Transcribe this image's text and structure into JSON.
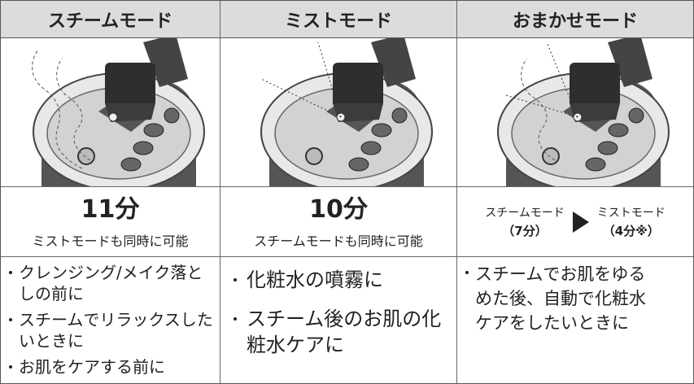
{
  "table": {
    "headers": [
      "スチームモード",
      "ミストモード",
      "おまかせモード"
    ],
    "durations": [
      {
        "time": "11分",
        "note": "ミストモードも同時に可能"
      },
      {
        "time": "10分",
        "note": "スチームモードも同時に可能"
      },
      {
        "steps": [
          {
            "mode": "スチームモード",
            "time": "（7分）"
          },
          {
            "mode": "ミストモード",
            "time": "（4分※）"
          }
        ]
      }
    ],
    "uses": [
      [
        "クレンジング/メイク落としの前に",
        "スチームでリラックスしたいときに",
        "お肌をケアする前に"
      ],
      [
        "化粧水の噴霧に",
        "スチーム後のお肌の化粧水ケアに"
      ],
      [
        "スチームでお肌をゆるめた後、自動で化粧水ケアをしたいときに"
      ]
    ]
  }
}
